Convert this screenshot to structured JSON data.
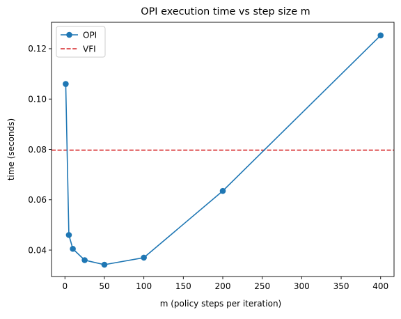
{
  "chart_data": {
    "type": "line",
    "title": "OPI execution time vs step size m",
    "xlabel": "m (policy steps per iteration)",
    "ylabel": "time (seconds)",
    "xlim": [
      -17,
      417
    ],
    "ylim": [
      0.0295,
      0.1305
    ],
    "xticks": [
      0,
      50,
      100,
      150,
      200,
      250,
      300,
      350,
      400
    ],
    "yticks": [
      0.04,
      0.06,
      0.08,
      0.1,
      0.12
    ],
    "ytick_labels": [
      "0.04",
      "0.06",
      "0.08",
      "0.10",
      "0.12"
    ],
    "grid": false,
    "legend_position": "top-left",
    "series": [
      {
        "name": "OPI",
        "style": "solid-line-with-circle-markers",
        "color": "#1f77b4",
        "x": [
          1,
          5,
          10,
          25,
          50,
          100,
          200,
          400
        ],
        "y": [
          0.106,
          0.046,
          0.0405,
          0.036,
          0.0342,
          0.037,
          0.0635,
          0.1253
        ]
      },
      {
        "name": "VFI",
        "style": "dashed-horizontal-line",
        "color": "#d62728",
        "y": 0.0797
      }
    ]
  }
}
